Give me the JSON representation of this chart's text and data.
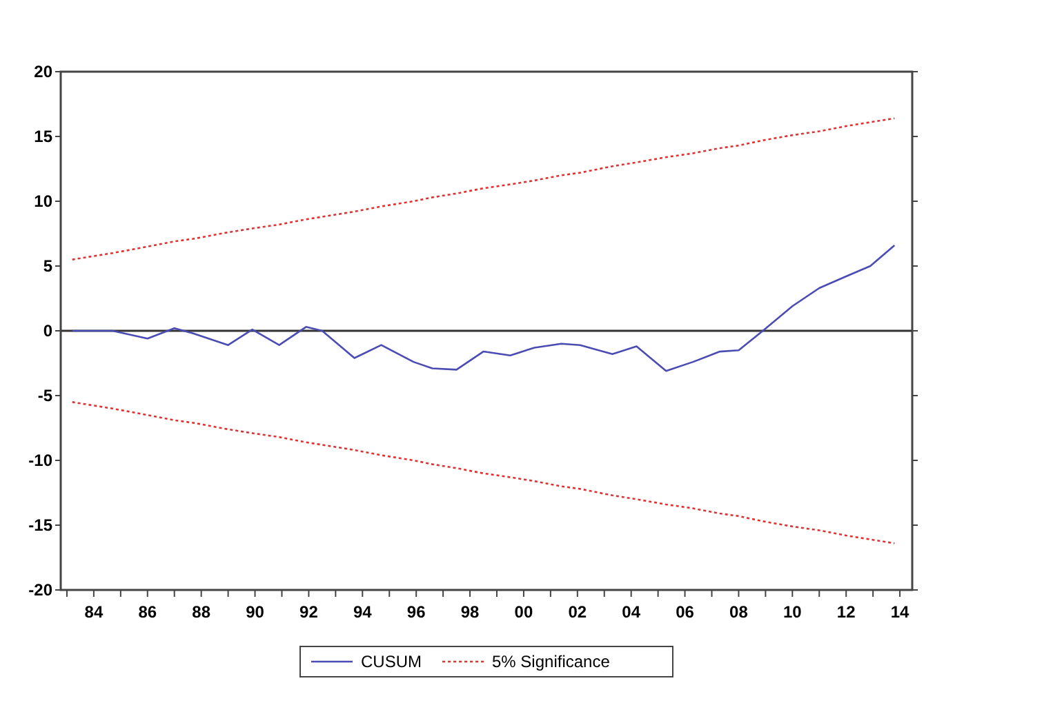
{
  "chart_data": {
    "type": "line",
    "x": [
      1983.2,
      1984.7,
      1986.0,
      1987.0,
      1987.7,
      1989.0,
      1989.9,
      1990.9,
      1991.9,
      1992.5,
      1993.7,
      1994.7,
      1995.9,
      1996.6,
      1997.5,
      1998.5,
      1999.5,
      2000.4,
      2001.4,
      2002.1,
      2003.3,
      2004.2,
      2005.3,
      2006.3,
      2007.3,
      2008.0,
      2008.9,
      2010.0,
      2011.0,
      2012.0,
      2012.9,
      2013.8
    ],
    "series": [
      {
        "name": "CUSUM",
        "color": "#4b4bb4",
        "line_style": "solid",
        "values": [
          0,
          0,
          -0.6,
          0.2,
          -0.2,
          -1.1,
          0.1,
          -1.1,
          0.3,
          0,
          -2.1,
          -1.1,
          -2.4,
          -2.9,
          -3.0,
          -1.6,
          -1.9,
          -1.3,
          -1.0,
          -1.1,
          -1.8,
          -1.2,
          -3.1,
          -2.4,
          -1.6,
          -1.5,
          0,
          1.9,
          3.3,
          4.2,
          5.0,
          6.6
        ]
      },
      {
        "name": "5% Significance",
        "color": "#e03030",
        "line_style": "dotted",
        "values": [
          5.5,
          6.0,
          6.5,
          6.9,
          7.1,
          7.6,
          7.9,
          8.2,
          8.6,
          8.8,
          9.2,
          9.6,
          10.0,
          10.3,
          10.6,
          11.0,
          11.3,
          11.6,
          12.0,
          12.2,
          12.7,
          13.0,
          13.4,
          13.7,
          14.1,
          14.3,
          14.7,
          15.1,
          15.4,
          15.8,
          16.1,
          16.4
        ]
      },
      {
        "color": "#e03030",
        "line_style": "dotted",
        "values": [
          -5.5,
          -6.0,
          -6.5,
          -6.9,
          -7.1,
          -7.6,
          -7.9,
          -8.2,
          -8.6,
          -8.8,
          -9.2,
          -9.6,
          -10.0,
          -10.3,
          -10.6,
          -11.0,
          -11.3,
          -11.6,
          -12.0,
          -12.2,
          -12.7,
          -13.0,
          -13.4,
          -13.7,
          -14.1,
          -14.3,
          -14.7,
          -15.1,
          -15.4,
          -15.8,
          -16.1,
          -16.4
        ]
      }
    ],
    "xlim": [
      1982.77,
      2014.46
    ],
    "xticks": [
      {
        "value": 1983,
        "label": null
      },
      {
        "value": 1984,
        "label": "84"
      },
      {
        "value": 1985,
        "label": null
      },
      {
        "value": 1986,
        "label": "86"
      },
      {
        "value": 1987,
        "label": null
      },
      {
        "value": 1988,
        "label": "88"
      },
      {
        "value": 1989,
        "label": null
      },
      {
        "value": 1990,
        "label": "90"
      },
      {
        "value": 1991,
        "label": null
      },
      {
        "value": 1992,
        "label": "92"
      },
      {
        "value": 1993,
        "label": null
      },
      {
        "value": 1994,
        "label": "94"
      },
      {
        "value": 1995,
        "label": null
      },
      {
        "value": 1996,
        "label": "96"
      },
      {
        "value": 1997,
        "label": null
      },
      {
        "value": 1998,
        "label": "98"
      },
      {
        "value": 1999,
        "label": null
      },
      {
        "value": 2000,
        "label": "00"
      },
      {
        "value": 2001,
        "label": null
      },
      {
        "value": 2002,
        "label": "02"
      },
      {
        "value": 2003,
        "label": null
      },
      {
        "value": 2004,
        "label": "04"
      },
      {
        "value": 2005,
        "label": null
      },
      {
        "value": 2006,
        "label": "06"
      },
      {
        "value": 2007,
        "label": null
      },
      {
        "value": 2008,
        "label": "08"
      },
      {
        "value": 2009,
        "label": null
      },
      {
        "value": 2010,
        "label": "10"
      },
      {
        "value": 2011,
        "label": null
      },
      {
        "value": 2012,
        "label": "12"
      },
      {
        "value": 2013,
        "label": null
      },
      {
        "value": 2014,
        "label": "14"
      }
    ],
    "ylim": [
      -20,
      20
    ],
    "yticks": [
      -20,
      -15,
      -10,
      -5,
      0,
      5,
      10,
      15,
      20
    ],
    "ref_lines": [
      {
        "axis": "y",
        "value": 0,
        "color": "#333333",
        "line_style": "solid"
      }
    ],
    "grid": false,
    "legend": "bottom",
    "marker": "none"
  }
}
